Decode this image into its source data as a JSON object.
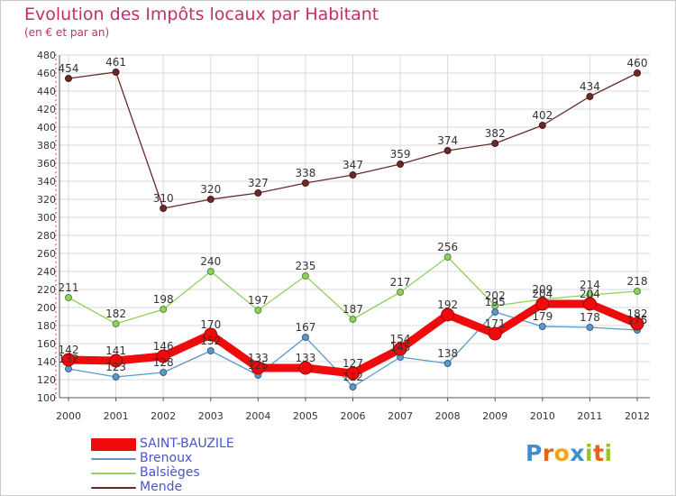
{
  "title": "Evolution des Impôts locaux par Habitant",
  "subtitle": "(en € et par an)",
  "logo_text": "Proxiti",
  "logo_colors": [
    "#3c8ed6",
    "#e8641a",
    "#f2a415",
    "#3c8ed6",
    "#9bc41e",
    "#e8641a",
    "#9bc41e"
  ],
  "chart_data": {
    "type": "line",
    "title": "Evolution des Impôts locaux par Habitant",
    "ylabel": "(en € et par an)",
    "xlabel": "",
    "ylim": [
      100,
      480
    ],
    "ytick_step": 20,
    "yticks": [
      "100",
      "120",
      "140",
      "160",
      "180",
      "200",
      "220",
      "240",
      "260",
      "280",
      "300",
      "320",
      "340",
      "360",
      "380",
      "400",
      "420",
      "440",
      "460",
      "480"
    ],
    "categories": [
      "2000",
      "2001",
      "2002",
      "2003",
      "2004",
      "2005",
      "2006",
      "2007",
      "2008",
      "2009",
      "2010",
      "2011",
      "2012"
    ],
    "grid": true,
    "legend_position": "bottom-left",
    "series": [
      {
        "name": "SAINT-BAUZILE",
        "color": "#ef0b0b",
        "values": [
          142,
          141,
          146,
          170,
          133,
          133,
          127,
          154,
          192,
          171,
          204,
          204,
          182
        ],
        "labels": [
          "142",
          "141",
          "146",
          "170",
          "133",
          "133",
          "127",
          "154",
          "192",
          "171",
          "204",
          "204",
          "182"
        ]
      },
      {
        "name": "Brenoux",
        "color": "#5b97c9",
        "values": [
          132,
          123,
          128,
          152,
          125,
          167,
          112,
          145,
          138,
          195,
          179,
          178,
          175
        ],
        "labels": [
          "132",
          "123",
          "128",
          "152",
          "125",
          "167",
          "112",
          "145",
          "138",
          "195",
          "179",
          "178",
          "175"
        ]
      },
      {
        "name": "Balsièges",
        "color": "#8fd15c",
        "values": [
          211,
          182,
          198,
          240,
          197,
          235,
          187,
          217,
          256,
          202,
          209,
          214,
          218
        ],
        "labels": [
          "211",
          "182",
          "198",
          "240",
          "197",
          "235",
          "187",
          "217",
          "256",
          "202",
          "209",
          "214",
          "218"
        ]
      },
      {
        "name": "Mende",
        "color": "#6b2a2a",
        "values": [
          454,
          461,
          310,
          320,
          327,
          338,
          347,
          359,
          374,
          382,
          402,
          434,
          460
        ],
        "labels": [
          "454",
          "461",
          "310",
          "320",
          "327",
          "338",
          "347",
          "359",
          "374",
          "382",
          "402",
          "434",
          "460"
        ]
      }
    ]
  }
}
